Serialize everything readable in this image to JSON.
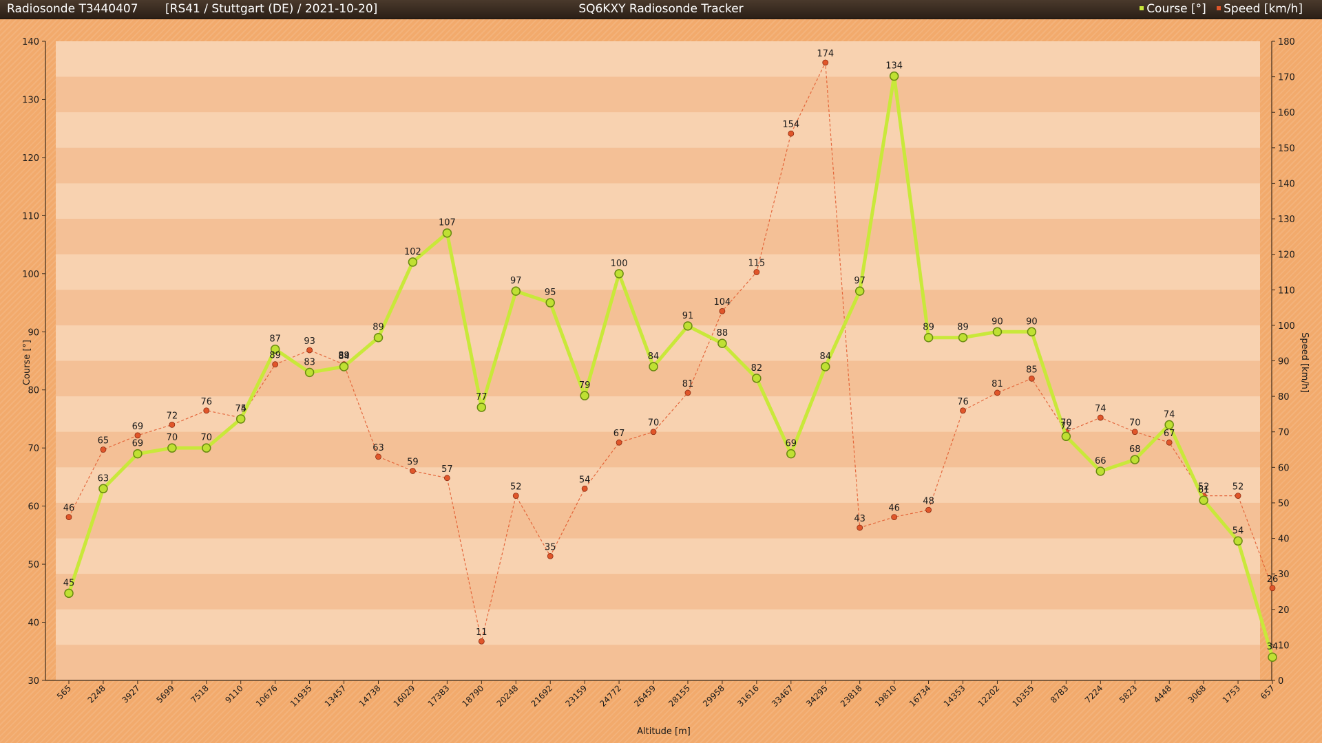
{
  "header": {
    "sonde_id": "Radiosonde T3440407",
    "flight_info": "[RS41 / Stuttgart (DE) / 2021-10-20]",
    "app_title": "SQ6KXY Radiosonde Tracker",
    "legend": [
      {
        "label": "Course [°]",
        "color": "#c9e83a"
      },
      {
        "label": "Speed [km/h]",
        "color": "#e0562a"
      }
    ]
  },
  "chart_data": {
    "type": "line",
    "xlabel": "Altitude [m]",
    "ylabel_left": "Course [°]",
    "ylabel_right": "Speed [km/h]",
    "ylim_left": [
      30,
      140
    ],
    "yticks_left": [
      30,
      40,
      50,
      60,
      70,
      80,
      90,
      100,
      110,
      120,
      130,
      140
    ],
    "ylim_right": [
      0,
      180
    ],
    "yticks_right": [
      0,
      10,
      20,
      30,
      40,
      50,
      60,
      70,
      80,
      90,
      100,
      110,
      120,
      130,
      140,
      150,
      160,
      170,
      180
    ],
    "categories": [
      "565",
      "2248",
      "3927",
      "5699",
      "7518",
      "9110",
      "10676",
      "11935",
      "13457",
      "14738",
      "16029",
      "17383",
      "18790",
      "20248",
      "21692",
      "23159",
      "24772",
      "26459",
      "28155",
      "29958",
      "31616",
      "33467",
      "34295",
      "23818",
      "19810",
      "16734",
      "14353",
      "12202",
      "10355",
      "8783",
      "7224",
      "5823",
      "4448",
      "3068",
      "1753",
      "657"
    ],
    "series": [
      {
        "name": "Course [°]",
        "axis": "left",
        "color": "#c9e83a",
        "values": [
          45,
          63,
          69,
          70,
          70,
          75,
          87,
          83,
          84,
          89,
          102,
          107,
          77,
          97,
          95,
          79,
          100,
          84,
          91,
          88,
          82,
          69,
          84,
          97,
          134,
          89,
          89,
          90,
          90,
          72,
          66,
          68,
          74,
          61,
          54,
          34
        ]
      },
      {
        "name": "Speed [km/h]",
        "axis": "right",
        "color": "#e0562a",
        "values": [
          46,
          65,
          69,
          72,
          76,
          74,
          89,
          93,
          89,
          63,
          59,
          57,
          11,
          52,
          35,
          54,
          67,
          70,
          81,
          104,
          115,
          154,
          174,
          43,
          46,
          48,
          76,
          81,
          85,
          70,
          74,
          70,
          67,
          52,
          52,
          26
        ]
      }
    ],
    "grid": true,
    "legend_position": "top-right"
  }
}
